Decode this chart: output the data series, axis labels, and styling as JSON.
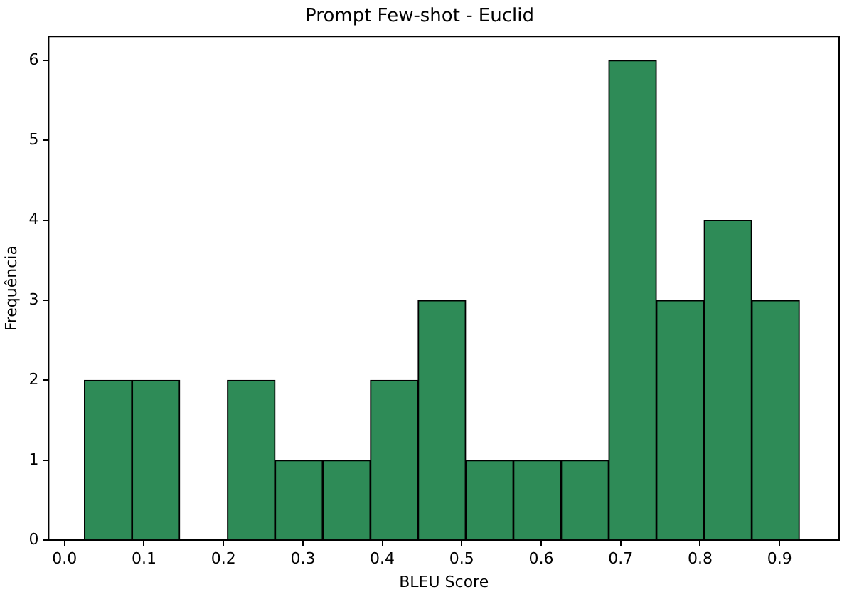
{
  "chart_data": {
    "type": "histogram",
    "title": "Prompt Few-shot - Euclid",
    "xlabel": "BLEU Score",
    "ylabel": "Frequência",
    "bins": [
      0.025,
      0.085,
      0.145,
      0.205,
      0.265,
      0.325,
      0.385,
      0.445,
      0.505,
      0.565,
      0.625,
      0.685,
      0.745,
      0.805,
      0.865,
      0.925
    ],
    "values": [
      2,
      2,
      0,
      2,
      1,
      1,
      2,
      3,
      1,
      1,
      1,
      6,
      3,
      4,
      3
    ],
    "color": "#2e8b57",
    "xlim": [
      -0.02,
      0.975
    ],
    "xticks": [
      {
        "value": 0,
        "label": "0.0"
      },
      0.1,
      0.2,
      0.3,
      0.4,
      0.5,
      0.6,
      0.7,
      0.8,
      0.9
    ],
    "ylim": [
      0,
      6.3
    ],
    "yticks": [
      0,
      1,
      2,
      3,
      4,
      5,
      6
    ],
    "grid": false,
    "legend": false
  }
}
